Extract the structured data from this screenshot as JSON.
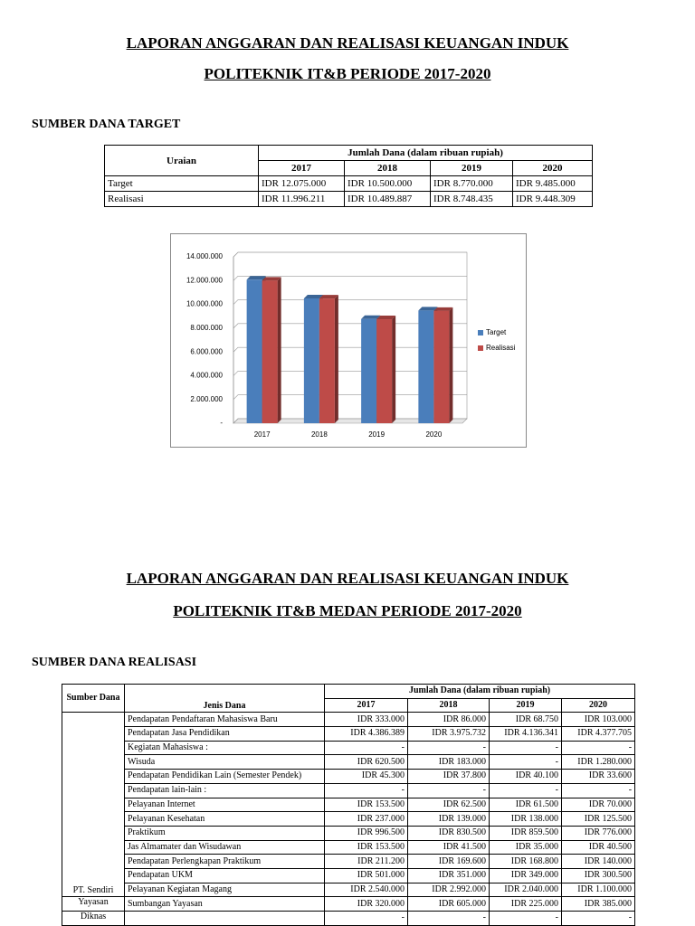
{
  "section1": {
    "title_lines": [
      "LAPORAN ANGGARAN DAN REALISASI KEUANGAN INDUK",
      "POLITEKNIK IT&B PERIODE 2017-2020"
    ],
    "subtitle": "SUMBER DANA TARGET",
    "table": {
      "header_label": "Uraian",
      "group_header": "Jumlah Dana (dalam ribuan rupiah)",
      "years": [
        "2017",
        "2018",
        "2019",
        "2020"
      ],
      "rows": [
        [
          "Target",
          "IDR 12.075.000",
          "IDR 10.500.000",
          "IDR 8.770.000",
          "IDR 9.485.000"
        ],
        [
          "Realisasi",
          "IDR 11.996.211",
          "IDR 10.489.887",
          "IDR 8.748.435",
          "IDR 9.448.309"
        ]
      ]
    }
  },
  "chart_data": {
    "type": "bar",
    "categories": [
      "2017",
      "2018",
      "2019",
      "2020"
    ],
    "series": [
      {
        "name": "Target",
        "color": "#4a7ebb",
        "values": [
          12075000,
          10500000,
          8770000,
          9485000
        ]
      },
      {
        "name": "Realisasi",
        "color": "#be4b48",
        "values": [
          11996211,
          10489887,
          8748435,
          9448309
        ]
      }
    ],
    "ylim": [
      0,
      14000000
    ],
    "yticks": [
      {
        "value": 0,
        "label": "-"
      },
      {
        "value": 2000000,
        "label": "2.000.000"
      },
      {
        "value": 4000000,
        "label": "4.000.000"
      },
      {
        "value": 6000000,
        "label": "6.000.000"
      },
      {
        "value": 8000000,
        "label": "8.000.000"
      },
      {
        "value": 10000000,
        "label": "10.000.000"
      },
      {
        "value": 12000000,
        "label": "12.000.000"
      },
      {
        "value": 14000000,
        "label": "14.000.000"
      }
    ],
    "grid": true,
    "legend": "right"
  },
  "section2": {
    "title_lines": [
      "LAPORAN ANGGARAN DAN REALISASI KEUANGAN INDUK",
      "POLITEKNIK IT&B MEDAN PERIODE 2017-2020"
    ],
    "subtitle": "SUMBER DANA REALISASI",
    "table": {
      "header_label": "Sumber Dana",
      "header_label2": "Jenis Dana",
      "group_header": "Jumlah Dana (dalam ribuan rupiah)",
      "years": [
        "2017",
        "2018",
        "2019",
        "2020"
      ],
      "rows": [
        [
          null,
          "Pendapatan Pendaftaran Mahasiswa Baru",
          "IDR 333.000",
          "IDR 86.000",
          "IDR 68.750",
          "IDR 103.000"
        ],
        [
          null,
          "Pendapatan Jasa Pendidikan",
          "IDR 4.386.389",
          "IDR 3.975.732",
          "IDR 4.136.341",
          "IDR 4.377.705"
        ],
        [
          null,
          "Kegiatan Mahasiswa :",
          "-",
          "-",
          "-",
          "-"
        ],
        [
          null,
          "Wisuda",
          "IDR 620.500",
          "IDR 183.000",
          "-",
          "IDR 1.280.000"
        ],
        [
          null,
          "Pendapatan Pendidikan Lain (Semester Pendek)",
          "IDR 45.300",
          "IDR 37.800",
          "IDR 40.100",
          "IDR 33.600"
        ],
        [
          null,
          "Pendapatan lain-lain :",
          "-",
          "-",
          "-",
          "-"
        ],
        [
          null,
          "Pelayanan Internet",
          "IDR 153.500",
          "IDR 62.500",
          "IDR 61.500",
          "IDR 70.000"
        ],
        [
          null,
          "Pelayanan Kesehatan",
          "IDR 237.000",
          "IDR 139.000",
          "IDR 138.000",
          "IDR 125.500"
        ],
        [
          null,
          "Praktikum",
          "IDR 996.500",
          "IDR 830.500",
          "IDR 859.500",
          "IDR 776.000"
        ],
        [
          null,
          "Jas Almamater dan Wisudawan",
          "IDR 153.500",
          "IDR 41.500",
          "IDR 35.000",
          "IDR 40.500"
        ],
        [
          null,
          "Pendapatan Perlengkapan Praktikum",
          "IDR 211.200",
          "IDR 169.600",
          "IDR 168.800",
          "IDR 140.000"
        ],
        [
          null,
          "Pendapatan UKM",
          "IDR 501.000",
          "IDR 351.000",
          "IDR 349.000",
          "IDR 300.500"
        ],
        [
          "PT. Sendiri",
          "Pelayanan Kegiatan Magang",
          "IDR 2.540.000",
          "IDR 2.992.000",
          "IDR 2.040.000",
          "IDR 1.100.000"
        ],
        [
          "Yayasan",
          "Sumbangan Yayasan",
          "IDR 320.000",
          "IDR 605.000",
          "IDR 225.000",
          "IDR 385.000"
        ],
        [
          "Diknas",
          null,
          "-",
          "-",
          "-",
          "-"
        ]
      ]
    }
  }
}
